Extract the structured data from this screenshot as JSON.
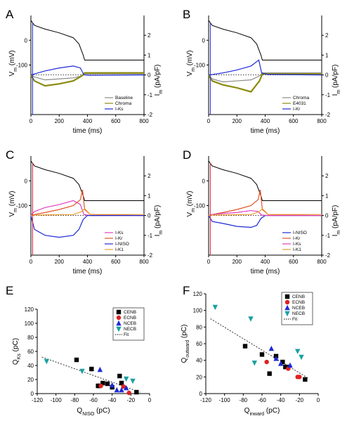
{
  "chart_data": [
    {
      "panel": "A",
      "type": "line",
      "xlabel": "time (ms)",
      "ylabel_left": "V_m (mV)",
      "ylabel_right": "I_m (pA/pF)",
      "xlim": [
        0,
        800
      ],
      "x_ticks": [
        "0",
        "200",
        "400",
        "600",
        "800"
      ],
      "ylim_left": [
        -300,
        100
      ],
      "y_ticks_left": [
        "0",
        "-100"
      ],
      "ylim_right": [
        -2,
        3
      ],
      "y_ticks_right": [
        "2",
        "1",
        "0",
        "-1",
        "-2"
      ],
      "series": [
        {
          "name": "Baseline",
          "color": "#8c8c8c",
          "x": [
            0,
            25,
            100,
            200,
            300,
            360,
            380,
            500,
            800
          ],
          "values": [
            0,
            -0.1,
            -0.25,
            -0.2,
            -0.15,
            -0.05,
            0.05,
            0.05,
            0.05
          ]
        },
        {
          "name": "Chroma",
          "color": "#8a8a10",
          "x": [
            0,
            25,
            100,
            200,
            300,
            360,
            380,
            500,
            800
          ],
          "values": [
            0,
            -0.3,
            -0.55,
            -0.45,
            -0.3,
            -0.05,
            0.1,
            0.1,
            0.1
          ]
        },
        {
          "name": "I-Ks",
          "color": "#1e2ad8",
          "x": [
            0,
            25,
            100,
            200,
            300,
            350,
            375,
            420,
            800
          ],
          "values": [
            0,
            0.05,
            0.2,
            0.35,
            0.45,
            0.35,
            0,
            -0.02,
            0
          ]
        }
      ],
      "voltage_trace": {
        "color": "#000000",
        "x": [
          0,
          25,
          100,
          200,
          300,
          340,
          370,
          380,
          800
        ],
        "values": [
          80,
          60,
          45,
          30,
          10,
          -15,
          -60,
          -80,
          -80
        ]
      },
      "legend": "bottom-right"
    },
    {
      "panel": "B",
      "type": "line",
      "xlabel": "time (ms)",
      "ylabel_left": "V_m (mV)",
      "ylabel_right": "I_m (pA/pF)",
      "xlim": [
        0,
        800
      ],
      "x_ticks": [
        "0",
        "200",
        "400",
        "600",
        "800"
      ],
      "ylim_left": [
        -300,
        100
      ],
      "y_ticks_left": [
        "0",
        "-100"
      ],
      "ylim_right": [
        -2,
        3
      ],
      "y_ticks_right": [
        "2",
        "1",
        "0",
        "-1",
        "-2"
      ],
      "series": [
        {
          "name": "Chroma",
          "color": "#8c8c8c",
          "x": [
            0,
            25,
            100,
            200,
            300,
            360,
            380,
            500,
            800
          ],
          "values": [
            0,
            -0.2,
            -0.35,
            -0.3,
            -0.25,
            -0.05,
            0.1,
            0.1,
            0.1
          ]
        },
        {
          "name": "E4031",
          "color": "#8a8a10",
          "x": [
            0,
            25,
            100,
            200,
            300,
            360,
            380,
            500,
            800
          ],
          "values": [
            0,
            -0.3,
            -0.5,
            -0.65,
            -0.85,
            -0.3,
            0.05,
            0.05,
            0.05
          ]
        },
        {
          "name": "I-Kr",
          "color": "#1e2ad8",
          "x": [
            0,
            25,
            100,
            200,
            300,
            355,
            375,
            420,
            800
          ],
          "values": [
            0,
            0.02,
            0.1,
            0.25,
            0.45,
            0.75,
            0.1,
            0.02,
            0
          ]
        }
      ],
      "voltage_trace": {
        "color": "#000000",
        "x": [
          0,
          25,
          100,
          200,
          300,
          340,
          370,
          380,
          800
        ],
        "values": [
          80,
          60,
          45,
          30,
          10,
          -15,
          -60,
          -80,
          -80
        ]
      },
      "legend": "bottom-right"
    },
    {
      "panel": "C",
      "type": "line",
      "xlabel": "time (ms)",
      "ylabel_left": "V_m (mV)",
      "ylabel_right": "I_m (pA/pF)",
      "xlim": [
        0,
        800
      ],
      "x_ticks": [
        "0",
        "200",
        "400",
        "600",
        "800"
      ],
      "ylim_left": [
        -300,
        100
      ],
      "y_ticks_left": [
        "0",
        "-100"
      ],
      "ylim_right": [
        -2,
        3
      ],
      "y_ticks_right": [
        "2",
        "1",
        "0",
        "-1",
        "-2"
      ],
      "series": [
        {
          "name": "I-Ks",
          "color": "#e040c0",
          "x": [
            0,
            25,
            100,
            200,
            300,
            350,
            375,
            420,
            800
          ],
          "values": [
            0,
            0.2,
            0.4,
            0.55,
            0.75,
            0.55,
            0.05,
            0,
            0
          ]
        },
        {
          "name": "I-Kr",
          "color": "#e0552a",
          "x": [
            0,
            25,
            100,
            200,
            300,
            350,
            365,
            380,
            420,
            800
          ],
          "values": [
            0,
            0.05,
            0.15,
            0.3,
            0.5,
            0.8,
            1.3,
            0.3,
            0.05,
            0
          ]
        },
        {
          "name": "I-NISO",
          "color": "#1e2ad8",
          "x": [
            0,
            25,
            100,
            200,
            300,
            340,
            370,
            400,
            800
          ],
          "values": [
            0,
            -0.7,
            -1.0,
            -1.1,
            -1.0,
            -0.7,
            -0.2,
            0,
            0
          ]
        },
        {
          "name": "I-K1",
          "color": "#f0a030",
          "x": [
            0,
            25,
            100,
            300,
            360,
            380,
            420,
            800
          ],
          "values": [
            0,
            0.02,
            0.03,
            0.05,
            0.2,
            0.35,
            0.05,
            0.05
          ]
        }
      ],
      "voltage_trace": {
        "color": "#000000",
        "x": [
          0,
          25,
          100,
          200,
          300,
          340,
          370,
          380,
          800
        ],
        "values": [
          80,
          60,
          45,
          30,
          10,
          -15,
          -60,
          -80,
          -80
        ]
      },
      "legend": "bottom-right"
    },
    {
      "panel": "D",
      "type": "line",
      "xlabel": "time (ms)",
      "ylabel_left": "V_m (mV)",
      "ylabel_right": "I_m (pA/pF)",
      "xlim": [
        0,
        800
      ],
      "x_ticks": [
        "0",
        "200",
        "400",
        "600",
        "800"
      ],
      "ylim_left": [
        -300,
        100
      ],
      "y_ticks_left": [
        "0",
        "-100"
      ],
      "ylim_right": [
        -2,
        3
      ],
      "y_ticks_right": [
        "2",
        "1",
        "0",
        "-1",
        "-2"
      ],
      "series": [
        {
          "name": "I-NISO",
          "color": "#1e2ad8",
          "x": [
            0,
            25,
            100,
            200,
            300,
            340,
            370,
            400,
            800
          ],
          "values": [
            0,
            -0.3,
            -0.4,
            -0.55,
            -0.6,
            -0.5,
            -0.15,
            0,
            0
          ]
        },
        {
          "name": "I-Kr",
          "color": "#e0552a",
          "x": [
            0,
            25,
            100,
            200,
            300,
            350,
            365,
            380,
            420,
            800
          ],
          "values": [
            0,
            0.05,
            0.15,
            0.3,
            0.5,
            0.8,
            1.3,
            0.3,
            0.05,
            0
          ]
        },
        {
          "name": "I-Ks",
          "color": "#e040c0",
          "x": [
            0,
            25,
            100,
            200,
            300,
            350,
            375,
            420,
            800
          ],
          "values": [
            0,
            0.05,
            0.1,
            0.15,
            0.25,
            0.2,
            0.02,
            0,
            0
          ]
        },
        {
          "name": "I-K1",
          "color": "#f0a030",
          "x": [
            0,
            25,
            100,
            300,
            360,
            380,
            420,
            800
          ],
          "values": [
            0,
            0.02,
            0.03,
            0.05,
            0.2,
            0.35,
            0.05,
            0.05
          ]
        }
      ],
      "voltage_trace": {
        "color": "#000000",
        "x": [
          0,
          25,
          100,
          200,
          300,
          340,
          370,
          380,
          800
        ],
        "values": [
          80,
          60,
          45,
          30,
          10,
          -15,
          -60,
          -80,
          -80
        ]
      },
      "legend": "bottom-right"
    },
    {
      "panel": "E",
      "type": "scatter",
      "xlabel": "Q_NISO (pC)",
      "ylabel": "Q_Ks (pC)",
      "xlim": [
        -120,
        0
      ],
      "ylim": [
        0,
        120
      ],
      "x_ticks": [
        "-120",
        "-100",
        "-80",
        "-60",
        "-40",
        "-20",
        "0"
      ],
      "y_ticks": [
        "0",
        "20",
        "40",
        "60",
        "80",
        "100",
        "120"
      ],
      "legend": "top-right",
      "series": [
        {
          "name": "CENB",
          "color": "#000000",
          "marker": "square",
          "x": [
            -78,
            -62,
            -50,
            -32,
            -30,
            -45,
            -55,
            -54,
            -14,
            -40
          ],
          "values": [
            48,
            35,
            15,
            25,
            15,
            14,
            11,
            11,
            2,
            9
          ]
        },
        {
          "name": "ECNB",
          "color": "#e02020",
          "marker": "circle",
          "x": [
            -22,
            -28,
            -52
          ],
          "values": [
            1,
            10,
            11
          ]
        },
        {
          "name": "NCEB",
          "color": "#1e2ad8",
          "marker": "triangle-up",
          "x": [
            -40,
            -35,
            -30,
            -53,
            -25
          ],
          "values": [
            12,
            5,
            5,
            34,
            8
          ]
        },
        {
          "name": "NECB",
          "color": "#1aa0a0",
          "marker": "triangle-down",
          "x": [
            -110,
            -72,
            -25,
            -18
          ],
          "values": [
            46,
            32,
            21,
            18
          ]
        }
      ],
      "fit": {
        "name": "Fit",
        "x": [
          -115,
          -10
        ],
        "values": [
          52,
          2
        ]
      }
    },
    {
      "panel": "F",
      "type": "scatter",
      "xlabel": "Q_inward (pC)",
      "ylabel": "Q_outward (pC)",
      "xlim": [
        -120,
        0
      ],
      "ylim": [
        0,
        120
      ],
      "x_ticks": [
        "-120",
        "-100",
        "-80",
        "-60",
        "-40",
        "-20",
        "0"
      ],
      "y_ticks": [
        "0",
        "20",
        "40",
        "60",
        "80",
        "100",
        "120"
      ],
      "legend": "top-right",
      "series": [
        {
          "name": "CENB",
          "color": "#000000",
          "marker": "square",
          "x": [
            -78,
            -60,
            -52,
            -45,
            -38,
            -35,
            -32,
            -14
          ],
          "values": [
            57,
            47,
            24,
            45,
            38,
            32,
            32,
            17
          ]
        },
        {
          "name": "ECNB",
          "color": "#e02020",
          "marker": "circle",
          "x": [
            -55,
            -32,
            -22,
            -20
          ],
          "values": [
            38,
            30,
            20,
            20
          ]
        },
        {
          "name": "NCEB",
          "color": "#1e2ad8",
          "marker": "triangle-up",
          "x": [
            -50,
            -45,
            -40,
            -30
          ],
          "values": [
            54,
            42,
            36,
            34
          ]
        },
        {
          "name": "NECB",
          "color": "#1aa0a0",
          "marker": "triangle-down",
          "x": [
            -110,
            -72,
            -68,
            -22,
            -18
          ],
          "values": [
            104,
            90,
            37,
            51,
            44
          ]
        }
      ],
      "fit": {
        "name": "Fit",
        "x": [
          -115,
          -10
        ],
        "values": [
          90,
          18
        ]
      }
    }
  ]
}
